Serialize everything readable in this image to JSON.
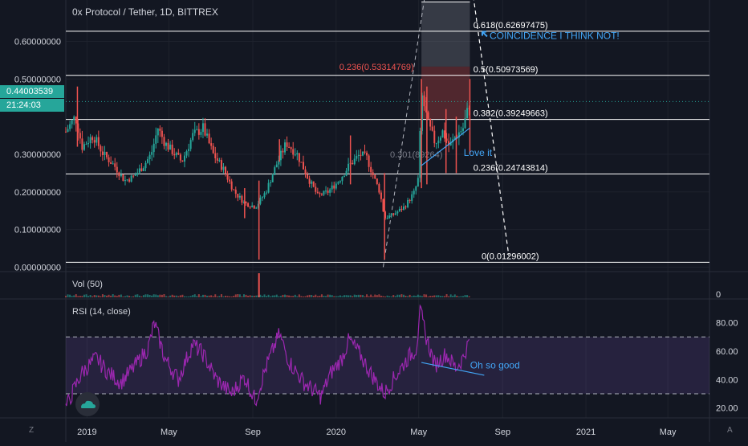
{
  "chart_title": "0x Protocol / Tether, 1D, BITTREX",
  "price_badge": {
    "price": "0.44003539",
    "countdown": "21:24:03",
    "color": "#26a69a"
  },
  "panels": {
    "vol_label": "Vol (50)",
    "rsi_label": "RSI (14, close)"
  },
  "vol_axis_tick": "0",
  "corner_buttons": {
    "left": "Z",
    "right": "A"
  },
  "colors": {
    "up": "#26a69a",
    "down": "#ef5350",
    "rsi": "#9c27b0",
    "annotation": "#42a5f5",
    "fib_red": "#ef5350"
  },
  "chart_data": {
    "type": "candlestick",
    "y_axis_ticks": [
      "0.60000000",
      "0.50000000",
      "0.30000000",
      "0.20000000",
      "0.10000000",
      "0.00000000"
    ],
    "y_axis_values": [
      0.6,
      0.5,
      0.3,
      0.2,
      0.1,
      0.0
    ],
    "ylim": [
      -0.012,
      0.71
    ],
    "x_axis_ticks": [
      "2019",
      "May",
      "Sep",
      "2020",
      "May",
      "Sep",
      "2021",
      "May"
    ],
    "x_axis_dates": [
      "2019-01-01",
      "2019-05-01",
      "2019-09-01",
      "2020-01-01",
      "2020-05-01",
      "2020-09-01",
      "2021-01-01",
      "2021-05-01"
    ],
    "xlim": [
      "2018-12-01",
      "2021-07-01"
    ],
    "close_path": [
      [
        "2018-12-01",
        0.36
      ],
      [
        "2018-12-15",
        0.4
      ],
      [
        "2018-12-25",
        0.32
      ],
      [
        "2019-01-10",
        0.35
      ],
      [
        "2019-01-25",
        0.3
      ],
      [
        "2019-02-10",
        0.27
      ],
      [
        "2019-02-25",
        0.23
      ],
      [
        "2019-03-10",
        0.24
      ],
      [
        "2019-03-25",
        0.27
      ],
      [
        "2019-04-05",
        0.3
      ],
      [
        "2019-04-15",
        0.37
      ],
      [
        "2019-04-25",
        0.33
      ],
      [
        "2019-05-10",
        0.3
      ],
      [
        "2019-05-20",
        0.28
      ],
      [
        "2019-06-05",
        0.35
      ],
      [
        "2019-06-20",
        0.37
      ],
      [
        "2019-07-05",
        0.3
      ],
      [
        "2019-07-20",
        0.26
      ],
      [
        "2019-08-05",
        0.2
      ],
      [
        "2019-08-20",
        0.17
      ],
      [
        "2019-09-05",
        0.16
      ],
      [
        "2019-09-20",
        0.2
      ],
      [
        "2019-10-05",
        0.27
      ],
      [
        "2019-10-20",
        0.33
      ],
      [
        "2019-11-05",
        0.3
      ],
      [
        "2019-11-20",
        0.24
      ],
      [
        "2019-12-05",
        0.19
      ],
      [
        "2019-12-20",
        0.2
      ],
      [
        "2020-01-05",
        0.23
      ],
      [
        "2020-01-20",
        0.27
      ],
      [
        "2020-02-05",
        0.3
      ],
      [
        "2020-02-15",
        0.29
      ],
      [
        "2020-02-25",
        0.24
      ],
      [
        "2020-03-05",
        0.2
      ],
      [
        "2020-03-12",
        0.13
      ],
      [
        "2020-03-25",
        0.14
      ],
      [
        "2020-04-10",
        0.16
      ],
      [
        "2020-04-25",
        0.2
      ],
      [
        "2020-05-01",
        0.24
      ],
      [
        "2020-05-05",
        0.46
      ],
      [
        "2020-05-15",
        0.38
      ],
      [
        "2020-05-25",
        0.33
      ],
      [
        "2020-06-05",
        0.36
      ],
      [
        "2020-06-15",
        0.32
      ],
      [
        "2020-06-25",
        0.35
      ],
      [
        "2020-07-05",
        0.37
      ],
      [
        "2020-07-15",
        0.44
      ]
    ],
    "spikes": [
      [
        "2018-12-18",
        0.48,
        0.32
      ],
      [
        "2019-08-20",
        0.21,
        0.13
      ],
      [
        "2019-09-10",
        0.23,
        0.02
      ],
      [
        "2019-10-10",
        0.34,
        0.28
      ],
      [
        "2020-01-22",
        0.35,
        0.22
      ],
      [
        "2020-03-12",
        0.25,
        0.02
      ],
      [
        "2020-05-05",
        0.5,
        0.21
      ],
      [
        "2020-05-13",
        0.48,
        0.22
      ],
      [
        "2020-06-10",
        0.42,
        0.25
      ],
      [
        "2020-06-25",
        0.4,
        0.25
      ],
      [
        "2020-07-15",
        0.5,
        0.3
      ]
    ],
    "horizontal_levels": [
      {
        "value": 0.62697475,
        "label": "0.618(0.62697475)"
      },
      {
        "value": 0.50973569,
        "label": "0.5(0.50973569)"
      },
      {
        "value": 0.39249663,
        "label": "0.382(0.39249663)"
      },
      {
        "value": 0.24743814,
        "label": "0.236(0.24743814)"
      },
      {
        "value": 0.01296002,
        "label": "0(0.01296002)"
      }
    ],
    "fib_red_label": {
      "text": "0.236(0.53314769)",
      "date": "2020-05-01",
      "value": 0.533
    },
    "fib_grey_label": {
      "text": "0.301(89264)",
      "date": "2020-03-20",
      "value": 0.3
    },
    "price_line": 0.44003539,
    "annotations": {
      "coincidence": {
        "text": "COINCIDENCE I THINK NOT!",
        "date": "2020-08-01",
        "value": 0.615
      },
      "love_it": {
        "text": "Love it",
        "date": "2020-07-20",
        "value": 0.3
      },
      "oh_so_good": {
        "text": "Oh so good",
        "date": "2020-07-20",
        "rsi": 50
      }
    },
    "rsi": {
      "ticks": [
        "80.00",
        "60.00",
        "40.00",
        "20.00"
      ],
      "tick_values": [
        80,
        60,
        40,
        20
      ],
      "ylim": [
        13,
        95
      ],
      "band": [
        70,
        30
      ],
      "path": [
        [
          "2018-12-01",
          20
        ],
        [
          "2018-12-15",
          35
        ],
        [
          "2018-12-25",
          45
        ],
        [
          "2019-01-15",
          55
        ],
        [
          "2019-02-01",
          45
        ],
        [
          "2019-02-20",
          38
        ],
        [
          "2019-03-10",
          48
        ],
        [
          "2019-04-01",
          62
        ],
        [
          "2019-04-10",
          80
        ],
        [
          "2019-04-25",
          55
        ],
        [
          "2019-05-15",
          40
        ],
        [
          "2019-06-05",
          65
        ],
        [
          "2019-06-20",
          58
        ],
        [
          "2019-07-10",
          40
        ],
        [
          "2019-08-01",
          30
        ],
        [
          "2019-08-20",
          42
        ],
        [
          "2019-09-05",
          25
        ],
        [
          "2019-09-20",
          48
        ],
        [
          "2019-10-10",
          72
        ],
        [
          "2019-10-25",
          52
        ],
        [
          "2019-11-15",
          38
        ],
        [
          "2019-12-10",
          28
        ],
        [
          "2019-12-25",
          45
        ],
        [
          "2020-01-10",
          55
        ],
        [
          "2020-01-20",
          68
        ],
        [
          "2020-02-05",
          58
        ],
        [
          "2020-02-20",
          45
        ],
        [
          "2020-03-12",
          30
        ],
        [
          "2020-03-25",
          40
        ],
        [
          "2020-04-15",
          55
        ],
        [
          "2020-04-28",
          62
        ],
        [
          "2020-05-03",
          89
        ],
        [
          "2020-05-12",
          70
        ],
        [
          "2020-05-25",
          50
        ],
        [
          "2020-06-10",
          58
        ],
        [
          "2020-06-25",
          48
        ],
        [
          "2020-07-05",
          55
        ],
        [
          "2020-07-15",
          68
        ]
      ]
    }
  }
}
